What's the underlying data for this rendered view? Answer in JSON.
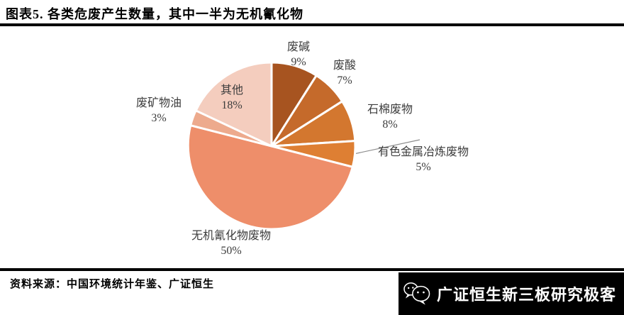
{
  "title": "图表5. 各类危废产生数量，其中一半为无机氰化物",
  "source": "资料来源：中国环境统计年鉴、广证恒生",
  "logo": {
    "text": "广证恒生新三板研究极客",
    "icon": "wechat-icon",
    "bg_color": "#000000",
    "text_color": "#ffffff"
  },
  "chart_data": {
    "type": "pie",
    "title": "各类危废产生数量",
    "unit": "%",
    "start_angle_deg": 0,
    "direction": "clockwise",
    "legend_position": "none",
    "labels_style": "outside-category-and-percent",
    "slices": [
      {
        "label": "废碱",
        "value": 9,
        "display": "9%",
        "color": "#a75420"
      },
      {
        "label": "废酸",
        "value": 7,
        "display": "7%",
        "color": "#c56a2b"
      },
      {
        "label": "石棉废物",
        "value": 8,
        "display": "8%",
        "color": "#d3772f"
      },
      {
        "label": "有色金属冶炼废物",
        "value": 5,
        "display": "5%",
        "color": "#de7f33",
        "leader_line": true
      },
      {
        "label": "无机氰化物废物",
        "value": 50,
        "display": "50%",
        "color": "#ee8e6a"
      },
      {
        "label": "废矿物油",
        "value": 3,
        "display": "3%",
        "color": "#edaa8d"
      },
      {
        "label": "其他",
        "value": 18,
        "display": "18%",
        "color": "#f4cdbe"
      }
    ]
  }
}
